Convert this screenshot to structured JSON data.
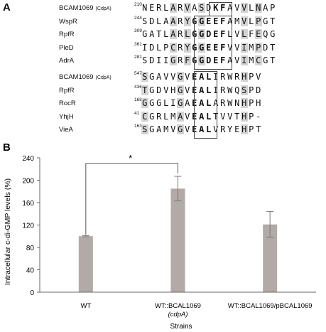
{
  "panelA": {
    "label": "A",
    "group1": [
      {
        "protein": "BCAM1069",
        "note": "(CdpA)",
        "start": "210",
        "seq": "NERLARVASDKFAVVLNAP"
      },
      {
        "protein": "WspR",
        "note": "",
        "start": "244",
        "seq": "SDLAARYGGEEFAMVLPGT"
      },
      {
        "protein": "RpfR",
        "note": "",
        "start": "309",
        "seq": "GATLARLGGDEFLVLFEQG"
      },
      {
        "protein": "PleD",
        "note": "",
        "start": "361",
        "seq": "IDLPCRYGGEEFVVIMPDT"
      },
      {
        "protein": "AdrA",
        "note": "",
        "start": "281",
        "seq": "SDIIGRFGGDEFAVIMCGT"
      }
    ],
    "group2": [
      {
        "protein": "BCAM1069",
        "note": "(CdpA)",
        "start": "547",
        "seq": "SGAVVGVEALIRWRHPV"
      },
      {
        "protein": "RpfR",
        "note": "",
        "start": "436",
        "seq": "TGDVHGVEALIRWQSPD"
      },
      {
        "protein": "RocR",
        "note": "",
        "start": "168",
        "seq": "GGGLIGAEALARWNHPH"
      },
      {
        "protein": "YhjH",
        "note": "",
        "start": "41",
        "seq": "CGRLMAVEALTVVTHP-"
      },
      {
        "protein": "VieA",
        "note": "",
        "start": "163",
        "seq": "SGAMVGVEALVRYEHPT"
      }
    ]
  },
  "panelB": {
    "label": "B",
    "significance": "*",
    "chart_data": {
      "type": "bar",
      "categories": [
        "WT",
        "WT::BCAL1069",
        "WT::BCAL1069/pBCAL1069"
      ],
      "category_sublabels": [
        "",
        "(cdpA)",
        ""
      ],
      "values": [
        100,
        185,
        121
      ],
      "errors": [
        1,
        22,
        23
      ],
      "ylabel": "Intracellular c-di-GMP levels (%)",
      "xlabel": "Strains",
      "ylim": [
        0,
        240
      ],
      "yticks": [
        0,
        40,
        80,
        120,
        160,
        200,
        240
      ],
      "bar_color": "#b2aaa6"
    }
  }
}
